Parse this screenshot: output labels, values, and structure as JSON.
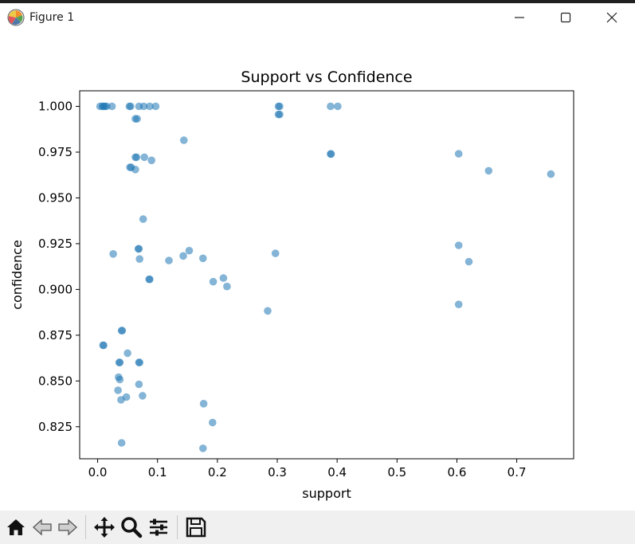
{
  "window": {
    "title": "Figure 1"
  },
  "icons": {
    "app": "matplotlib-icon",
    "minimize": "minimize-icon",
    "maximize": "maximize-icon",
    "close": "close-icon"
  },
  "toolbar": {
    "buttons": [
      {
        "name": "home-icon"
      },
      {
        "name": "back-icon"
      },
      {
        "name": "forward-icon"
      },
      {
        "name": "pan-icon"
      },
      {
        "name": "zoom-icon"
      },
      {
        "name": "configure-subplots-icon"
      },
      {
        "name": "save-icon"
      }
    ]
  },
  "colors": {
    "point": "#1f77b4",
    "axes": "#000000",
    "toolbar_bg": "#f0f0f0"
  },
  "chart_data": {
    "type": "scatter",
    "title": "Support vs Confidence",
    "xlabel": "support",
    "ylabel": "confidence",
    "xlim": [
      -0.03,
      0.795
    ],
    "ylim": [
      0.8075,
      1.0085
    ],
    "grid": false,
    "point_alpha": 0.55,
    "xticks": [
      0.0,
      0.1,
      0.2,
      0.3,
      0.4,
      0.5,
      0.6,
      0.7
    ],
    "xtick_labels": [
      "0.0",
      "0.1",
      "0.2",
      "0.3",
      "0.4",
      "0.5",
      "0.6",
      "0.7"
    ],
    "yticks": [
      0.825,
      0.85,
      0.875,
      0.9,
      0.925,
      0.95,
      0.975,
      1.0
    ],
    "ytick_labels": [
      "0.825",
      "0.850",
      "0.875",
      "0.900",
      "0.925",
      "0.950",
      "0.975",
      "1.000"
    ],
    "x": [
      0.004,
      0.008,
      0.01,
      0.012,
      0.015,
      0.024,
      0.053,
      0.055,
      0.069,
      0.077,
      0.087,
      0.097,
      0.302,
      0.304,
      0.389,
      0.401,
      0.063,
      0.066,
      0.302,
      0.304,
      0.144,
      0.063,
      0.065,
      0.078,
      0.09,
      0.389,
      0.39,
      0.603,
      0.054,
      0.056,
      0.063,
      0.653,
      0.757,
      0.076,
      0.026,
      0.068,
      0.069,
      0.07,
      0.119,
      0.143,
      0.153,
      0.176,
      0.297,
      0.603,
      0.62,
      0.086,
      0.087,
      0.193,
      0.21,
      0.216,
      0.284,
      0.603,
      0.04,
      0.041,
      0.009,
      0.01,
      0.05,
      0.036,
      0.037,
      0.069,
      0.07,
      0.035,
      0.037,
      0.069,
      0.034,
      0.039,
      0.048,
      0.075,
      0.177,
      0.192,
      0.04,
      0.176
    ],
    "y": [
      1.0,
      1.0,
      1.0,
      1.0,
      1.0,
      1.0,
      1.0,
      1.0,
      1.0,
      1.0,
      1.0,
      1.0,
      1.0,
      1.0,
      1.0,
      1.0,
      0.9932,
      0.9932,
      0.9956,
      0.9956,
      0.9815,
      0.9722,
      0.9722,
      0.9722,
      0.9705,
      0.974,
      0.974,
      0.9741,
      0.9667,
      0.9667,
      0.9655,
      0.9648,
      0.963,
      0.9384,
      0.9194,
      0.9222,
      0.9222,
      0.9166,
      0.9158,
      0.9183,
      0.9212,
      0.917,
      0.9197,
      0.9241,
      0.9152,
      0.9055,
      0.9055,
      0.9042,
      0.9062,
      0.9016,
      0.8883,
      0.8918,
      0.8775,
      0.8775,
      0.8695,
      0.8695,
      0.8652,
      0.8601,
      0.8601,
      0.8601,
      0.8601,
      0.8521,
      0.8508,
      0.8482,
      0.8449,
      0.8397,
      0.8412,
      0.8419,
      0.8376,
      0.8273,
      0.8162,
      0.8132
    ]
  }
}
